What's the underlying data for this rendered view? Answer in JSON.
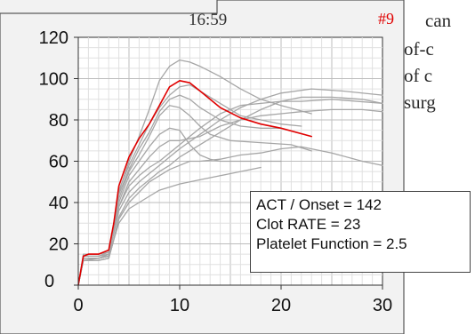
{
  "page_text": {
    "line1": "can",
    "line2": "of-c",
    "line3": "of c",
    "line4": "surg"
  },
  "chart_data": {
    "type": "line",
    "title": "16:59",
    "case_label": "#9",
    "xlim": [
      0,
      30
    ],
    "ylim": [
      0,
      120
    ],
    "x_ticks": [
      "0",
      "10",
      "20",
      "30"
    ],
    "y_ticks": [
      "0",
      "20",
      "40",
      "60",
      "80",
      "100",
      "120"
    ],
    "grid": true,
    "colors": {
      "reference": "#a6a6a6",
      "patient": "#e00000",
      "case_label": "#e00000"
    },
    "results": {
      "act_onset": "ACT / Onset = 142",
      "clot_rate": "Clot RATE = 23",
      "platelet_function": "Platelet Function = 2.5"
    },
    "series": [
      {
        "role": "patient",
        "points": [
          [
            0,
            0
          ],
          [
            0.5,
            14
          ],
          [
            1,
            15
          ],
          [
            2,
            15
          ],
          [
            3,
            17
          ],
          [
            3.5,
            30
          ],
          [
            4,
            48
          ],
          [
            5,
            62
          ],
          [
            6,
            71
          ],
          [
            7,
            78
          ],
          [
            8,
            87
          ],
          [
            9,
            96
          ],
          [
            10,
            99
          ],
          [
            11,
            98
          ],
          [
            12,
            94
          ],
          [
            13,
            90
          ],
          [
            14,
            86
          ],
          [
            16,
            81
          ],
          [
            18,
            78
          ],
          [
            20,
            76
          ],
          [
            23,
            72
          ]
        ]
      },
      {
        "role": "reference",
        "points": [
          [
            0,
            0
          ],
          [
            0.5,
            15
          ],
          [
            2,
            15
          ],
          [
            3,
            16
          ],
          [
            3.5,
            30
          ],
          [
            4,
            45
          ],
          [
            5,
            60
          ],
          [
            6,
            72
          ],
          [
            7,
            85
          ],
          [
            8,
            99
          ],
          [
            9,
            106
          ],
          [
            10,
            109
          ],
          [
            11,
            108
          ],
          [
            12,
            106
          ],
          [
            14,
            101
          ],
          [
            16,
            95
          ],
          [
            18,
            90
          ],
          [
            20,
            87
          ],
          [
            23,
            83
          ]
        ]
      },
      {
        "role": "reference",
        "points": [
          [
            0,
            0
          ],
          [
            0.5,
            14
          ],
          [
            2,
            14
          ],
          [
            3,
            16
          ],
          [
            3.5,
            30
          ],
          [
            4,
            46
          ],
          [
            5,
            58
          ],
          [
            6,
            68
          ],
          [
            7,
            78
          ],
          [
            8,
            86
          ],
          [
            9,
            92
          ],
          [
            10,
            96
          ],
          [
            11,
            97
          ],
          [
            12,
            94
          ],
          [
            14,
            88
          ],
          [
            16,
            82
          ],
          [
            18,
            80
          ],
          [
            20,
            78
          ],
          [
            22,
            77
          ]
        ]
      },
      {
        "role": "reference",
        "points": [
          [
            0,
            0
          ],
          [
            0.5,
            14
          ],
          [
            2,
            14
          ],
          [
            3,
            15
          ],
          [
            3.5,
            28
          ],
          [
            4,
            44
          ],
          [
            5,
            56
          ],
          [
            6,
            66
          ],
          [
            7,
            74
          ],
          [
            8,
            84
          ],
          [
            9,
            90
          ],
          [
            10,
            92
          ],
          [
            11,
            90
          ],
          [
            12,
            86
          ],
          [
            14,
            80
          ],
          [
            16,
            77
          ],
          [
            18,
            76
          ],
          [
            20,
            76
          ]
        ]
      },
      {
        "role": "reference",
        "points": [
          [
            0,
            0
          ],
          [
            0.5,
            13
          ],
          [
            2,
            13
          ],
          [
            3,
            15
          ],
          [
            3.5,
            28
          ],
          [
            4,
            42
          ],
          [
            5,
            55
          ],
          [
            6,
            63
          ],
          [
            7,
            72
          ],
          [
            8,
            82
          ],
          [
            9,
            87
          ],
          [
            10,
            86
          ],
          [
            11,
            82
          ],
          [
            12,
            77
          ],
          [
            13,
            73
          ],
          [
            15,
            70
          ],
          [
            18,
            69
          ],
          [
            21,
            68
          ],
          [
            23,
            65
          ]
        ]
      },
      {
        "role": "reference",
        "points": [
          [
            0,
            0
          ],
          [
            0.5,
            13
          ],
          [
            2,
            13
          ],
          [
            3,
            15
          ],
          [
            3.5,
            27
          ],
          [
            4,
            40
          ],
          [
            5,
            53
          ],
          [
            6,
            60
          ],
          [
            7,
            67
          ],
          [
            8,
            73
          ],
          [
            9,
            76
          ],
          [
            10,
            75
          ],
          [
            11,
            68
          ],
          [
            12,
            63
          ],
          [
            13,
            61
          ],
          [
            14,
            60
          ],
          [
            16,
            60
          ],
          [
            18,
            60
          ],
          [
            20,
            60
          ]
        ]
      },
      {
        "role": "reference",
        "points": [
          [
            0,
            0
          ],
          [
            0.5,
            13
          ],
          [
            2,
            13
          ],
          [
            3,
            14
          ],
          [
            3.5,
            26
          ],
          [
            4,
            38
          ],
          [
            5,
            50
          ],
          [
            6,
            56
          ],
          [
            7,
            62
          ],
          [
            8,
            67
          ],
          [
            9,
            70
          ],
          [
            10,
            70
          ],
          [
            12,
            72
          ],
          [
            14,
            77
          ],
          [
            16,
            80
          ],
          [
            18,
            82
          ],
          [
            20,
            83
          ],
          [
            22,
            84
          ],
          [
            25,
            85
          ],
          [
            28,
            85
          ],
          [
            30,
            84
          ]
        ]
      },
      {
        "role": "reference",
        "points": [
          [
            0,
            0
          ],
          [
            0.5,
            13
          ],
          [
            2,
            13
          ],
          [
            3,
            14
          ],
          [
            3.5,
            26
          ],
          [
            4,
            38
          ],
          [
            5,
            48
          ],
          [
            6,
            53
          ],
          [
            7,
            57
          ],
          [
            8,
            60
          ],
          [
            9,
            64
          ],
          [
            10,
            68
          ],
          [
            12,
            76
          ],
          [
            14,
            83
          ],
          [
            16,
            87
          ],
          [
            18,
            88
          ],
          [
            20,
            89
          ],
          [
            22,
            89
          ],
          [
            25,
            90
          ],
          [
            30,
            88
          ]
        ]
      },
      {
        "role": "reference",
        "points": [
          [
            0,
            0
          ],
          [
            0.5,
            12
          ],
          [
            2,
            13
          ],
          [
            3,
            14
          ],
          [
            3.5,
            25
          ],
          [
            4,
            36
          ],
          [
            5,
            45
          ],
          [
            6,
            50
          ],
          [
            7,
            54
          ],
          [
            8,
            58
          ],
          [
            9,
            62
          ],
          [
            10,
            66
          ],
          [
            12,
            73
          ],
          [
            14,
            80
          ],
          [
            16,
            86
          ],
          [
            18,
            90
          ],
          [
            20,
            93
          ],
          [
            23,
            95
          ],
          [
            26,
            94
          ],
          [
            30,
            92
          ]
        ]
      },
      {
        "role": "reference",
        "points": [
          [
            0,
            0
          ],
          [
            0.5,
            12
          ],
          [
            2,
            12
          ],
          [
            3,
            13
          ],
          [
            3.5,
            22
          ],
          [
            4,
            33
          ],
          [
            5,
            42
          ],
          [
            6,
            47
          ],
          [
            7,
            51
          ],
          [
            8,
            55
          ],
          [
            9,
            58
          ],
          [
            10,
            62
          ],
          [
            12,
            68
          ],
          [
            14,
            74
          ],
          [
            16,
            80
          ],
          [
            18,
            85
          ],
          [
            20,
            89
          ],
          [
            22,
            91
          ],
          [
            25,
            91
          ],
          [
            28,
            90
          ],
          [
            30,
            88
          ]
        ]
      },
      {
        "role": "reference",
        "points": [
          [
            0,
            0
          ],
          [
            0.5,
            12
          ],
          [
            2,
            12
          ],
          [
            3,
            13
          ],
          [
            3.5,
            22
          ],
          [
            4,
            32
          ],
          [
            5,
            40
          ],
          [
            6,
            45
          ],
          [
            7,
            50
          ],
          [
            8,
            53
          ],
          [
            9,
            56
          ],
          [
            10,
            58
          ],
          [
            11,
            60
          ],
          [
            12,
            60
          ],
          [
            14,
            61
          ],
          [
            16,
            63
          ],
          [
            18,
            64
          ],
          [
            20,
            66
          ],
          [
            22,
            67
          ],
          [
            25,
            64
          ],
          [
            28,
            60
          ],
          [
            30,
            58
          ]
        ]
      },
      {
        "role": "reference",
        "points": [
          [
            0,
            0
          ],
          [
            0.5,
            12
          ],
          [
            2,
            12
          ],
          [
            3,
            13
          ],
          [
            3.5,
            22
          ],
          [
            4,
            30
          ],
          [
            5,
            37
          ],
          [
            6,
            40
          ],
          [
            7,
            43
          ],
          [
            8,
            46
          ],
          [
            10,
            49
          ],
          [
            12,
            51
          ],
          [
            14,
            53
          ],
          [
            16,
            55
          ],
          [
            18,
            57
          ]
        ]
      }
    ]
  }
}
